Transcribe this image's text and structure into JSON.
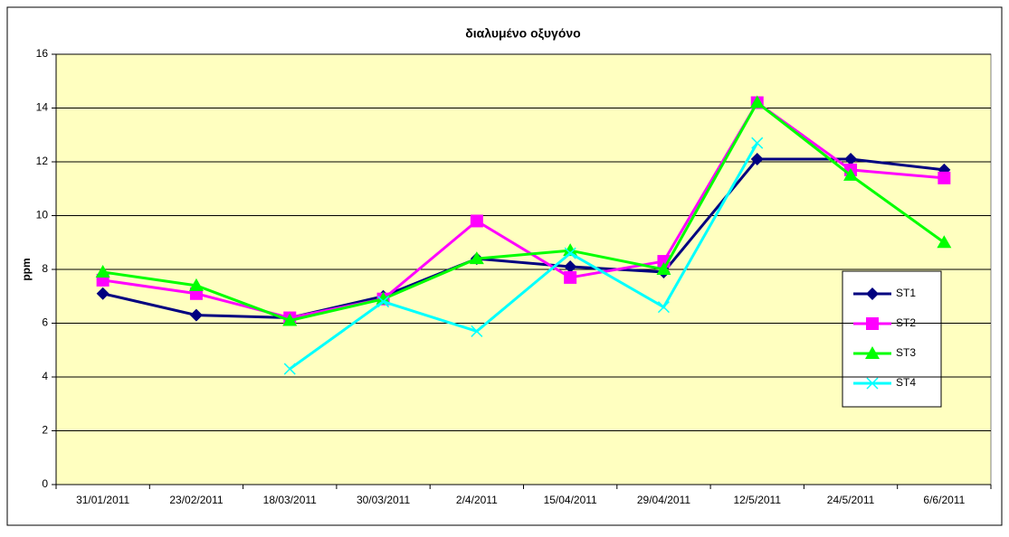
{
  "chart_data": {
    "type": "line",
    "title": "διαλυμένο οξυγόνο",
    "y_label": "ppm",
    "categories": [
      "31/01/2011",
      "23/02/2011",
      "18/03/2011",
      "30/03/2011",
      "2/4/2011",
      "15/04/2011",
      "29/04/2011",
      "12/5/2011",
      "24/5/2011",
      "6/6/2011"
    ],
    "series": [
      {
        "name": "ST1",
        "color": "#000080",
        "marker": "diamond",
        "values": [
          7.1,
          6.3,
          6.2,
          7.0,
          8.4,
          8.1,
          7.9,
          12.1,
          12.1,
          11.7
        ]
      },
      {
        "name": "ST2",
        "color": "#ff00ff",
        "marker": "square",
        "values": [
          7.6,
          7.1,
          6.2,
          6.9,
          9.8,
          7.7,
          8.3,
          14.2,
          11.7,
          11.4
        ]
      },
      {
        "name": "ST3",
        "color": "#00ff00",
        "marker": "triangle",
        "values": [
          7.9,
          7.4,
          6.1,
          6.9,
          8.4,
          8.7,
          8.0,
          14.2,
          11.5,
          9.0
        ]
      },
      {
        "name": "ST4",
        "color": "#00ffff",
        "marker": "x",
        "values": [
          null,
          null,
          4.3,
          6.8,
          5.7,
          8.6,
          6.6,
          12.7,
          null,
          null
        ]
      }
    ],
    "ylim": [
      0,
      16
    ],
    "yticks": [
      0,
      2,
      4,
      6,
      8,
      10,
      12,
      14,
      16
    ],
    "grid": true,
    "legend": "right"
  }
}
